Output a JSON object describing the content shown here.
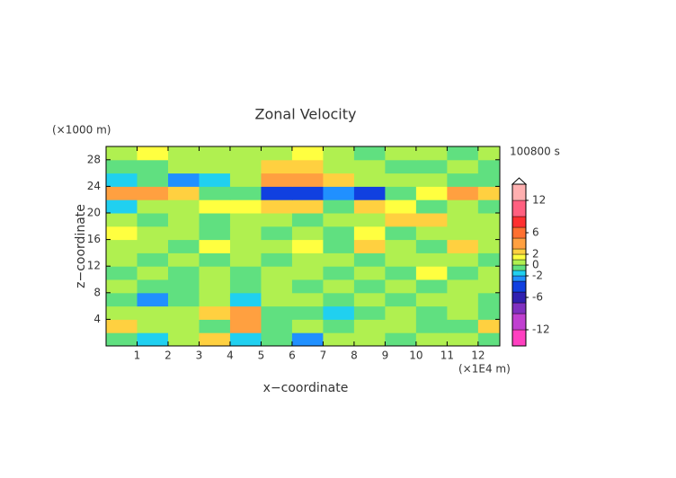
{
  "chart_data": {
    "type": "contour",
    "title": "Zonal Velocity",
    "x_label": "x−coordinate",
    "y_label": "z−coordinate",
    "x_unit": "(×1E4 m)",
    "y_unit": "(×1000 m)",
    "time_label": "100800 s",
    "xlim": [
      0,
      12.7
    ],
    "ylim": [
      0,
      30
    ],
    "xticks": [
      1,
      2,
      3,
      4,
      5,
      6,
      7,
      8,
      9,
      10,
      11,
      12
    ],
    "yticks": [
      4,
      8,
      12,
      16,
      20,
      24,
      28
    ],
    "x": [
      0.5,
      1.5,
      2.5,
      3.5,
      4.5,
      5.5,
      6.5,
      7.5,
      8.5,
      9.5,
      10.5,
      11.5,
      12.5
    ],
    "y": [
      1,
      3,
      5,
      7,
      9,
      11,
      13,
      15,
      17,
      19,
      21,
      23,
      25,
      27,
      29
    ],
    "z": [
      [
        -0.5,
        -2,
        0.5,
        2.5,
        -2,
        -1,
        -2.5,
        0.5,
        0.5,
        -0.5,
        0.5,
        0.5,
        -0.5
      ],
      [
        2.5,
        0.5,
        0.5,
        -0.5,
        4,
        -1,
        0.5,
        -1,
        0.5,
        0.5,
        -0.5,
        -0.5,
        2.5
      ],
      [
        0.5,
        0.5,
        0.5,
        2.5,
        3.5,
        -0.5,
        -1,
        -2,
        -0.5,
        0.5,
        -0.5,
        0.5,
        -0.5
      ],
      [
        -0.5,
        -2.5,
        -1,
        0.5,
        -2,
        0.5,
        0.5,
        -0.5,
        0.5,
        -0.5,
        0.5,
        0.5,
        -0.5
      ],
      [
        0.5,
        -1,
        -0.5,
        0.5,
        -0.5,
        0.5,
        -0.5,
        0.5,
        -0.5,
        0.5,
        -0.5,
        0.5,
        0.5
      ],
      [
        -0.5,
        0.5,
        -0.5,
        0.5,
        -1,
        0.5,
        0.5,
        -0.5,
        0.5,
        -0.5,
        1,
        -0.5,
        0.5
      ],
      [
        0.5,
        -0.5,
        0.5,
        -0.5,
        0.5,
        -0.5,
        0.5,
        0.5,
        -0.5,
        0.5,
        0.5,
        0.5,
        -1
      ],
      [
        0.5,
        0.5,
        -0.5,
        1,
        0.5,
        0.5,
        1,
        -0.5,
        2.5,
        0.5,
        -1,
        2.5,
        0.5
      ],
      [
        1,
        0.5,
        0.5,
        -0.5,
        0.5,
        -0.5,
        0.5,
        -0.5,
        1,
        -1,
        0.5,
        0.5,
        0.5
      ],
      [
        0.5,
        -1,
        0.5,
        -0.5,
        0.5,
        0.5,
        -0.5,
        0.5,
        0.5,
        2.5,
        2.5,
        0.5,
        0.5
      ],
      [
        -1.5,
        0.5,
        0.5,
        1,
        1,
        2.5,
        2.5,
        -0.5,
        2.5,
        1,
        -0.5,
        0.5,
        -1
      ],
      [
        3,
        3,
        2.5,
        -0.5,
        -1,
        -5,
        -5,
        -3,
        -3.5,
        -1,
        1,
        3,
        2.5
      ],
      [
        -1.5,
        -1,
        -3,
        -1.5,
        0.5,
        3.5,
        3,
        2,
        0.5,
        0.5,
        0.5,
        -0.5,
        -1
      ],
      [
        -0.5,
        -0.5,
        0.5,
        0.5,
        0.5,
        2,
        2.5,
        0.5,
        0.5,
        -0.5,
        -0.5,
        0.5,
        -1
      ],
      [
        0.5,
        1,
        0.5,
        0.5,
        0.5,
        0.5,
        1,
        0.5,
        -0.5,
        0.5,
        0.5,
        -0.5,
        0.5
      ]
    ],
    "clim": [
      -15,
      15
    ],
    "cticks": [
      -12,
      -6,
      -2,
      0,
      2,
      6,
      12
    ],
    "levels": [
      -15,
      -12,
      -9,
      -7,
      -5,
      -3,
      -2,
      -1,
      0,
      1,
      2,
      3,
      5,
      7,
      9,
      12,
      15
    ],
    "colors": [
      "#ff40c0",
      "#c040d0",
      "#8030c0",
      "#3020b0",
      "#1040e0",
      "#2090ff",
      "#20d0f0",
      "#60e080",
      "#b0f050",
      "#ffff40",
      "#ffd040",
      "#ffa040",
      "#ff7030",
      "#ff3030",
      "#ff6080",
      "#ffb0b0"
    ]
  }
}
